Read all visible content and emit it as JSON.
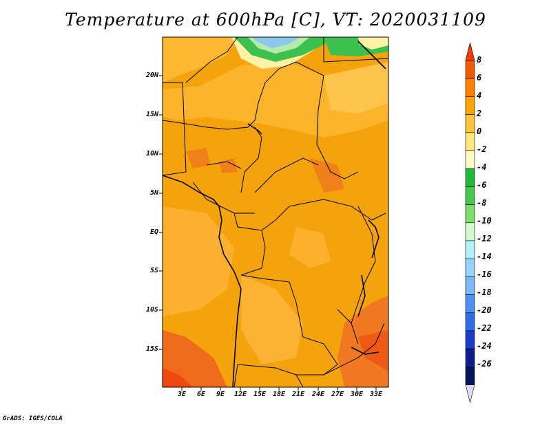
{
  "title": "Temperature at 600hPa [C], VT: 2020031109",
  "credit": "GrADS: IGES/COLA",
  "lat_ticks": [
    "20N",
    "15N",
    "10N",
    "5N",
    "EQ",
    "5S",
    "10S",
    "15S"
  ],
  "lon_ticks": [
    "3E",
    "6E",
    "9E",
    "12E",
    "15E",
    "18E",
    "21E",
    "24E",
    "27E",
    "30E",
    "33E"
  ],
  "colorbar": {
    "labels": [
      "8",
      "6",
      "4",
      "2",
      "0",
      "-2",
      "-4",
      "-6",
      "-8",
      "-10",
      "-12",
      "-14",
      "-16",
      "-18",
      "-20",
      "-22",
      "-24",
      "-26"
    ],
    "colors": [
      "#fa3c00",
      "#f05a00",
      "#ff7f00",
      "#fca500",
      "#ffc43c",
      "#ffe679",
      "#fffbc3",
      "#21b93a",
      "#48c84a",
      "#7ddc6b",
      "#d4f7cb",
      "#b4f0fa",
      "#96d2fa",
      "#7ab8fa",
      "#4f8ff0",
      "#2d6ee6",
      "#1e3ccb",
      "#0e1c8c",
      "#06125a",
      "#e0d8f6"
    ]
  },
  "map_colors": {
    "warm4": "#f0a002",
    "warm2": "#fcae28",
    "warm0": "#fdc340",
    "warm6": "#f27a10",
    "hot": "#ef5a14",
    "cold0": "#fff3a6",
    "green": "#3cc04e",
    "lightgreen": "#b6eaa8",
    "blue": "#8cc7f0"
  }
}
